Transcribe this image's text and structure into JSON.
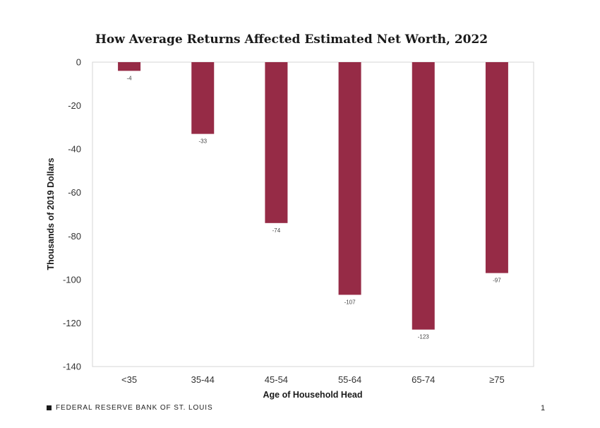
{
  "chart_data": {
    "type": "bar",
    "title": "How Average Returns Affected Estimated Net Worth, 2022",
    "xlabel": "Age of Household Head",
    "ylabel": "Thousands  of 2019 Dollars",
    "categories": [
      "<35",
      "35-44",
      "45-54",
      "55-64",
      "65-74",
      "≥75"
    ],
    "values": [
      -4,
      -33,
      -74,
      -107,
      -123,
      -97
    ],
    "data_labels": [
      "-4",
      "-33",
      "-74",
      "-107",
      "-123",
      "-97"
    ],
    "ylim": [
      -140,
      0
    ],
    "yticks": [
      0,
      -20,
      -40,
      -60,
      -80,
      -100,
      -120,
      -140
    ],
    "grid": false,
    "bar_color": "#962b46"
  },
  "footer": {
    "source": "FEDERAL RESERVE BANK OF ST. LOUIS",
    "page_number": "1"
  }
}
